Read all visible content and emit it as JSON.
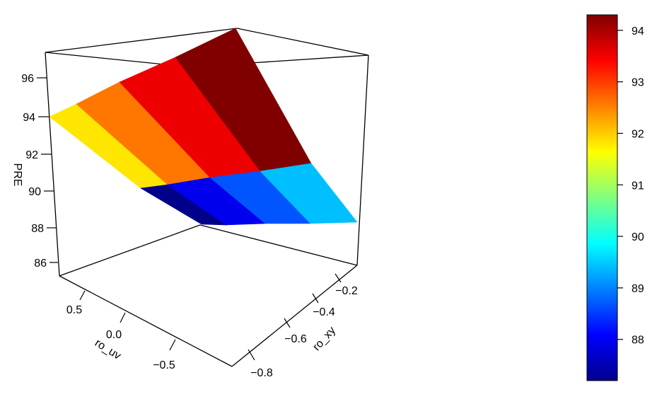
{
  "chart_data": {
    "type": "surface3d",
    "x_axis": {
      "label": "ro_xy",
      "ticks": [
        "-0.8",
        "-0.6",
        "-0.4",
        "-0.2"
      ]
    },
    "y_axis": {
      "label": "ro_uv",
      "ticks": [
        "0.5",
        "0.0",
        "-0.5"
      ]
    },
    "z_axis": {
      "label": "PRE",
      "ticks": [
        "96",
        "94",
        "92",
        "90",
        "88",
        "86"
      ]
    },
    "ro_xy": [
      -0.9,
      -0.7,
      -0.5,
      -0.3,
      -0.1
    ],
    "ro_uv": [
      0.9,
      0.0,
      -0.9
    ],
    "PRE": [
      [
        94.0,
        95.0,
        95.8,
        96.6,
        97.4
      ],
      [
        90.2,
        90.6,
        91.0,
        91.4,
        91.8
      ],
      [
        85.3,
        85.8,
        86.4,
        87.0,
        87.7
      ]
    ],
    "facet_colors": [
      [
        "#FFE600",
        "#FF7700",
        "#EE0000",
        "#800000"
      ],
      [
        "#00008B",
        "#0000EE",
        "#0055FF",
        "#00BFFF"
      ]
    ],
    "colorbar": {
      "range": [
        87.2,
        94.3
      ],
      "ticks": [
        "94",
        "93",
        "92",
        "91",
        "90",
        "89",
        "88"
      ],
      "palette": [
        "#00008F",
        "#0000FF",
        "#0080FF",
        "#00FFFF",
        "#80FF80",
        "#FFFF00",
        "#FF8000",
        "#FF0000",
        "#800000"
      ]
    }
  }
}
